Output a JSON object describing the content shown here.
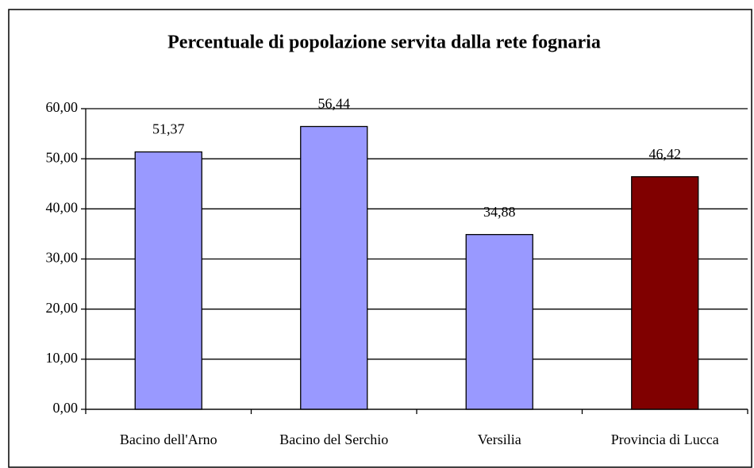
{
  "chart_data": {
    "type": "bar",
    "title": "Percentuale di popolazione servita dalla rete fognaria",
    "categories": [
      "Bacino dell'Arno",
      "Bacino del Serchio",
      "Versilia",
      "Provincia di Lucca"
    ],
    "values": [
      51.37,
      56.44,
      34.88,
      46.42
    ],
    "value_labels": [
      "51,37",
      "56,44",
      "34,88",
      "46,42"
    ],
    "colors": [
      "#9999ff",
      "#9999ff",
      "#9999ff",
      "#800000"
    ],
    "ylim": [
      0,
      60
    ],
    "yticks": [
      {
        "value": 0,
        "label": "0,00"
      },
      {
        "value": 10,
        "label": "10,00"
      },
      {
        "value": 20,
        "label": "20,00"
      },
      {
        "value": 30,
        "label": "30,00"
      },
      {
        "value": 40,
        "label": "40,00"
      },
      {
        "value": 50,
        "label": "50,00"
      },
      {
        "value": 60,
        "label": "60,00"
      }
    ],
    "grid": true
  }
}
